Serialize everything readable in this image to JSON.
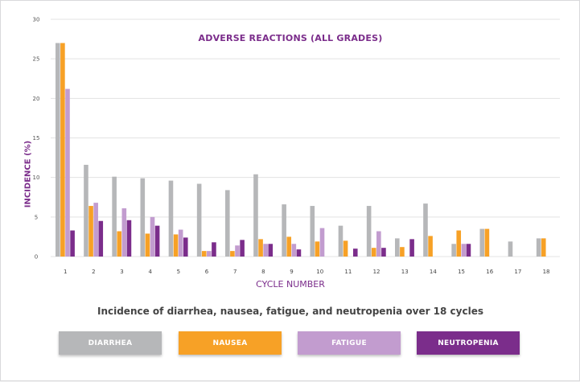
{
  "chart_data": {
    "type": "bar",
    "title": "ADVERSE REACTIONS (ALL GRADES)",
    "xlabel": "CYCLE NUMBER",
    "ylabel": "INCIDENCE (%)",
    "ylim": [
      0,
      30
    ],
    "yticks": [
      "0",
      "5",
      "10",
      "15",
      "20",
      "25",
      "30"
    ],
    "grid": true,
    "categories": [
      "1",
      "2",
      "3",
      "4",
      "5",
      "6",
      "7",
      "8",
      "9",
      "10",
      "11",
      "12",
      "13",
      "14",
      "15",
      "16",
      "17",
      "18"
    ],
    "series": [
      {
        "name": "DIARRHEA",
        "color": "#b6b7b9",
        "values": [
          27,
          11.6,
          10.1,
          9.9,
          9.6,
          9.2,
          8.4,
          10.4,
          6.6,
          6.4,
          3.9,
          6.4,
          2.3,
          6.7,
          1.6,
          3.5,
          1.9,
          2.3
        ]
      },
      {
        "name": "NAUSEA",
        "color": "#f7a126",
        "values": [
          27,
          6.4,
          3.2,
          2.9,
          2.8,
          0.7,
          0.7,
          2.2,
          2.5,
          1.9,
          2.0,
          1.1,
          1.2,
          2.6,
          3.3,
          3.5,
          null,
          2.3
        ]
      },
      {
        "name": "FATIGUE",
        "color": "#c29ccf",
        "values": [
          21.2,
          6.8,
          6.1,
          5.0,
          3.4,
          0.7,
          1.4,
          1.6,
          1.6,
          3.6,
          null,
          3.2,
          null,
          null,
          1.6,
          null,
          null,
          null
        ]
      },
      {
        "name": "NEUTROPENIA",
        "color": "#7b2d8b",
        "values": [
          3.3,
          4.5,
          4.6,
          3.9,
          2.4,
          1.8,
          2.1,
          1.6,
          0.9,
          null,
          1.0,
          1.1,
          2.2,
          null,
          1.6,
          null,
          null,
          null
        ]
      }
    ]
  },
  "caption": "Incidence of diarrhea, nausea, fatigue, and neutropenia over 18 cycles",
  "legend": [
    {
      "label": "DIARRHEA",
      "color": "#b6b7b9"
    },
    {
      "label": "NAUSEA",
      "color": "#f7a126"
    },
    {
      "label": "FATIGUE",
      "color": "#c29ccf"
    },
    {
      "label": "NEUTROPENIA",
      "color": "#7b2d8b"
    }
  ]
}
